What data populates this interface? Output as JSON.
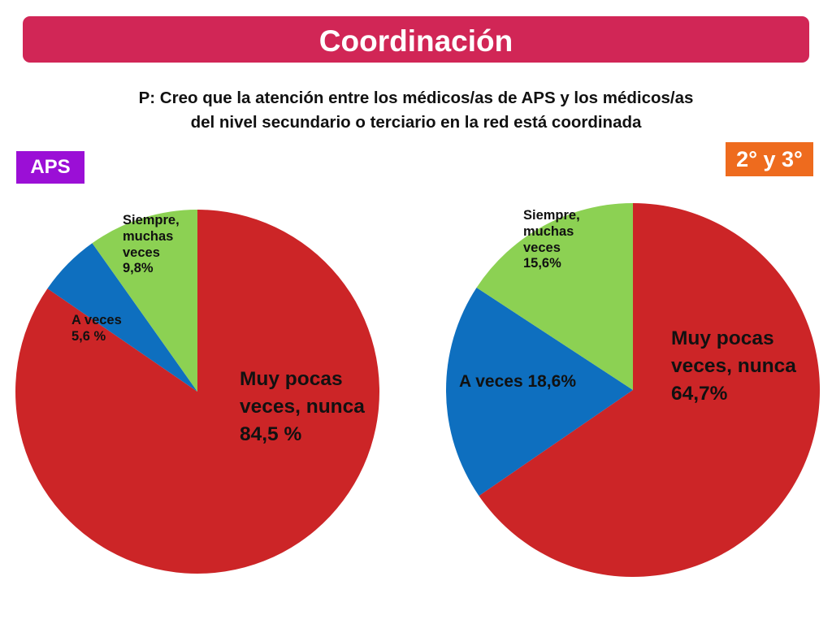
{
  "header": {
    "title": "Coordinación",
    "question_line1": "P: Creo que la atención entre los médicos/as de APS y los médicos/as",
    "question_line2": "del nivel secundario o terciario en la red está coordinada"
  },
  "colors": {
    "title_bar": "#d12656",
    "aps_badge": "#9b0fd6",
    "secondary_badge": "#ee6b1e",
    "muy_pocas": "#cc2527",
    "a_veces": "#0e6fbf",
    "siempre": "#8cd153"
  },
  "chart_data": [
    {
      "type": "pie",
      "title": "APS",
      "slices": [
        {
          "name": "Muy pocas veces, nunca",
          "value": 84.5,
          "color": "#cc2527",
          "label_lines": [
            "Muy pocas",
            "veces, nunca",
            "84,5 %"
          ]
        },
        {
          "name": "A veces",
          "value": 5.6,
          "color": "#0e6fbf",
          "label_lines": [
            "A veces",
            "5,6 %"
          ]
        },
        {
          "name": "Siempre, muchas veces",
          "value": 9.8,
          "color": "#8cd153",
          "label_lines": [
            "Siempre,",
            "muchas",
            "veces",
            "9,8%"
          ]
        }
      ]
    },
    {
      "type": "pie",
      "title": "2° y 3°",
      "slices": [
        {
          "name": "Muy pocas veces, nunca",
          "value": 64.7,
          "color": "#cc2527",
          "label_lines": [
            "Muy pocas",
            "veces, nunca",
            "64,7%"
          ]
        },
        {
          "name": "A veces",
          "value": 18.6,
          "color": "#0e6fbf",
          "label_lines": [
            "A veces 18,6%"
          ]
        },
        {
          "name": "Siempre, muchas veces",
          "value": 15.6,
          "color": "#8cd153",
          "label_lines": [
            "Siempre,",
            "muchas",
            "veces",
            "15,6%"
          ]
        }
      ]
    }
  ]
}
